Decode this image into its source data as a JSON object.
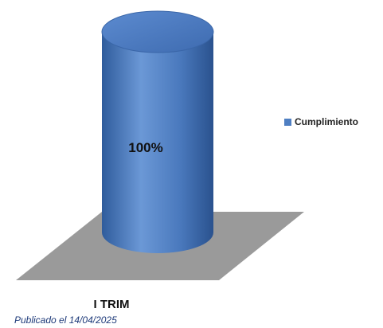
{
  "chart_data": {
    "type": "bar",
    "style": "3d-cylinder",
    "categories": [
      "I TRIM"
    ],
    "series": [
      {
        "name": "Cumplimiento",
        "values": [
          100
        ],
        "color": "#4f7fc2"
      }
    ],
    "data_labels": [
      "100%"
    ],
    "ylim": [
      0,
      100
    ],
    "grid": false,
    "legend_position": "right",
    "floor_color": "#9a9a9a"
  },
  "footer": {
    "note": "Publicado el 14/04/2025"
  }
}
